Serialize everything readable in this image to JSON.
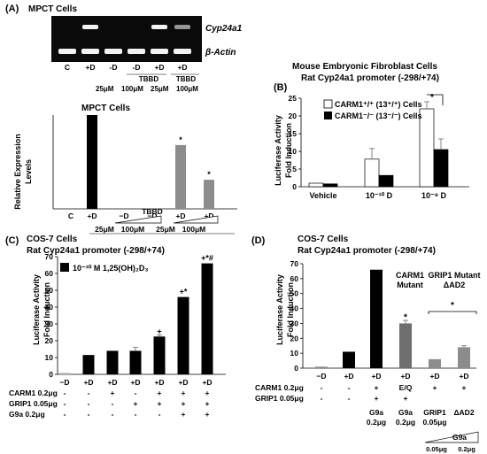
{
  "colors": {
    "black": "#000000",
    "gray": "#8c8c8c",
    "white": "#ffffff",
    "gel": "#0a0a0a",
    "band": "#f2f2f2"
  },
  "panelA": {
    "letter": "(A)",
    "title": "MPCT Cells",
    "gel_labels": [
      "Cyp24a1",
      "β-Actin"
    ],
    "gel_lanes": [
      "C",
      "+D",
      "-D",
      "-D",
      "+D",
      "+D"
    ],
    "tbbd": "TBBD",
    "doses": [
      "25μM",
      "100μM"
    ],
    "cyp_band_intensity": [
      0,
      1,
      0,
      0,
      1,
      0.6
    ],
    "actin_band_intensity": [
      1,
      1,
      1,
      1,
      1,
      1
    ],
    "chart_data": {
      "type": "bar",
      "title": "MPCT Cells",
      "ylabel": "Relative Expression Levels",
      "ylabel_lines": [
        "Relative Expression",
        "Levels"
      ],
      "ylim": [
        0,
        100
      ],
      "categories": [
        "C",
        "+D",
        "−D",
        "−D",
        "+D",
        "+D"
      ],
      "values": [
        0,
        100,
        0,
        0,
        68,
        31
      ],
      "colors": [
        "#000000",
        "#000000",
        "#000000",
        "#000000",
        "#8c8c8c",
        "#8c8c8c"
      ],
      "annotations": [
        "",
        "",
        "",
        "",
        "*",
        "*"
      ],
      "tbbd": "TBBD",
      "doses": [
        "25μM",
        "100μM",
        "25μM",
        "100μM"
      ]
    }
  },
  "panelB": {
    "letter": "(B)",
    "title_lines": [
      "Mouse Embryonic Fibroblast Cells",
      "Rat Cyp24a1 promoter (-298/+74)"
    ],
    "chart_data": {
      "type": "bar",
      "ylabel": "Luciferase Activity Fold Induction",
      "ylabel_lines": [
        "Luciferase Activity",
        "Fold Induction"
      ],
      "ylim": [
        0,
        25
      ],
      "yticks": [
        0,
        5,
        10,
        15,
        20,
        25
      ],
      "categories": [
        "Vehicle",
        "10⁻¹⁰ D",
        "10⁻⁸ D"
      ],
      "series": [
        {
          "name": "CARM1⁺/⁺ (13⁺/⁺) Cells",
          "values": [
            1,
            7.8,
            22
          ],
          "errors": [
            0,
            3,
            2
          ],
          "color": "#ffffff"
        },
        {
          "name": "CARM1⁻/⁻ (13⁻/⁻) Cells",
          "values": [
            0.8,
            3.2,
            10.5
          ],
          "errors": [
            0,
            0,
            3
          ],
          "color": "#000000"
        }
      ],
      "annotations": [
        "*"
      ],
      "legend": "top-left"
    }
  },
  "panelC": {
    "letter": "(C)",
    "title_lines": [
      "COS-7 Cells",
      "Rat Cyp24a1 promoter (-298/+74)"
    ],
    "legend_label": "10⁻¹⁰ M 1,25(OH)₂D₃",
    "chart_data": {
      "type": "bar",
      "ylabel": "Luciferase Activity Fold Induction",
      "ylabel_lines": [
        "Luciferase Activity",
        "Fold Induction"
      ],
      "ylim": [
        0,
        70
      ],
      "yticks": [
        0,
        10,
        20,
        30,
        40,
        50,
        60,
        70
      ],
      "categories": [
        "−D",
        "+D",
        "+D",
        "+D",
        "+D",
        "+D",
        "+D"
      ],
      "values": [
        1,
        11.5,
        14,
        14,
        22.5,
        46,
        66
      ],
      "errors": [
        0,
        0,
        0,
        2,
        1,
        0,
        0
      ],
      "annotations": [
        "",
        "",
        "",
        "",
        "+",
        "+*",
        "+*#"
      ],
      "series_name": "10⁻¹⁰ M 1,25(OH)₂D₃",
      "rows": [
        {
          "label": "CARM1 0.2μg",
          "marks": [
            "-",
            "-",
            "+",
            "-",
            "+",
            "+",
            "+"
          ]
        },
        {
          "label": "GRIP1 0.05μg",
          "marks": [
            "-",
            "-",
            "-",
            "+",
            "+",
            "+",
            "+"
          ]
        },
        {
          "label": "G9a 0.2μg",
          "marks": [
            "-",
            "-",
            "-",
            "-",
            "-",
            "+",
            "+"
          ]
        }
      ],
      "legend": "top-left"
    }
  },
  "panelD": {
    "letter": "(D)",
    "title_lines": [
      "COS-7 Cells",
      "Rat Cyp24a1 promoter (-298/+74)"
    ],
    "label_carm1_mutant": [
      "CARM1",
      "Mutant"
    ],
    "label_grip1_mutant": [
      "GRIP1  Mutant",
      "ΔAD2"
    ],
    "chart_data": {
      "type": "bar",
      "ylabel": "Luciferase Activity Fold Induction",
      "ylabel_lines": [
        "Luciferase Activity",
        "Fold Induction"
      ],
      "ylim": [
        0,
        70
      ],
      "yticks": [
        0,
        10,
        20,
        30,
        40,
        50,
        60,
        70
      ],
      "categories": [
        "−D",
        "+D",
        "+D",
        "+D",
        "+D",
        "+D"
      ],
      "values": [
        1,
        11,
        66,
        30,
        6,
        14
      ],
      "errors": [
        0,
        0,
        0,
        2,
        0,
        1
      ],
      "colors": [
        "#8c8c8c",
        "#000000",
        "#000000",
        "#6e6e6e",
        "#8c8c8c",
        "#8c8c8c"
      ],
      "annotations": [
        "",
        "",
        "",
        "*",
        "",
        ""
      ],
      "group_annotation": "*",
      "rows": [
        {
          "label": "CARM1 0.2μg",
          "marks": [
            "-",
            "-",
            "+",
            "E/Q",
            "+",
            "+"
          ]
        },
        {
          "label": "GRIP1 0.05μg",
          "marks": [
            "-",
            "-",
            "+",
            "+",
            "",
            ""
          ]
        }
      ],
      "bottom_lines": [
        [
          "",
          "",
          "G9a",
          "G9a",
          "GRIP1",
          "ΔAD2"
        ],
        [
          "",
          "",
          "0.2μg",
          "0.2μg",
          "0.05μg",
          ""
        ]
      ],
      "g9a_label": "G9a",
      "g9a_doses": [
        "0.05μg",
        "0.2μg"
      ]
    }
  }
}
